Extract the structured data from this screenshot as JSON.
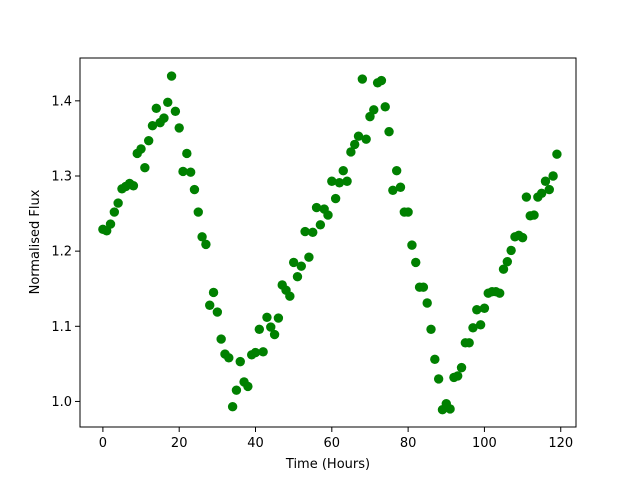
{
  "chart_data": {
    "type": "scatter",
    "title": "",
    "xlabel": "Time (Hours)",
    "ylabel": "Normalised Flux",
    "xlim": [
      -6,
      124
    ],
    "ylim": [
      0.966,
      1.457
    ],
    "xticks": [
      0,
      20,
      40,
      60,
      80,
      100,
      120
    ],
    "yticks": [
      1.0,
      1.1,
      1.2,
      1.3,
      1.4
    ],
    "grid": false,
    "legend": "none",
    "marker_color": "#008000",
    "series": [
      {
        "x": [
          0,
          1,
          2,
          3,
          4,
          5,
          6,
          7,
          8,
          9,
          10,
          11,
          12,
          13,
          14,
          15,
          16,
          17,
          18,
          19,
          20,
          21,
          22,
          23,
          24,
          25,
          26,
          27,
          28,
          29,
          30,
          31,
          32,
          33,
          34,
          35,
          36,
          37,
          38,
          39,
          40,
          41,
          42,
          43,
          44,
          45,
          46,
          47,
          48,
          49,
          50,
          51,
          52,
          53,
          54,
          55,
          56,
          57,
          58,
          59,
          60,
          61,
          62,
          63,
          64,
          65,
          66,
          67,
          68,
          69,
          70,
          71,
          72,
          73,
          74,
          75,
          76,
          77,
          78,
          79,
          80,
          81,
          82,
          83,
          84,
          85,
          86,
          87,
          88,
          89,
          90,
          91,
          92,
          93,
          94,
          95,
          96,
          97,
          98,
          99,
          100,
          101,
          102,
          103,
          104,
          105,
          106,
          107,
          108,
          109,
          110,
          111,
          112,
          113,
          114,
          115,
          116,
          117,
          118,
          119
        ],
        "y": [
          1.229,
          1.227,
          1.236,
          1.252,
          1.264,
          1.283,
          1.286,
          1.29,
          1.287,
          1.33,
          1.336,
          1.311,
          1.347,
          1.367,
          1.39,
          1.371,
          1.377,
          1.398,
          1.433,
          1.386,
          1.364,
          1.306,
          1.33,
          1.305,
          1.282,
          1.252,
          1.219,
          1.209,
          1.128,
          1.145,
          1.119,
          1.083,
          1.063,
          1.058,
          0.993,
          1.015,
          1.053,
          1.026,
          1.02,
          1.062,
          1.065,
          1.096,
          1.066,
          1.112,
          1.099,
          1.089,
          1.111,
          1.155,
          1.148,
          1.14,
          1.185,
          1.166,
          1.18,
          1.226,
          1.192,
          1.225,
          1.258,
          1.235,
          1.256,
          1.248,
          1.293,
          1.27,
          1.291,
          1.307,
          1.293,
          1.332,
          1.342,
          1.353,
          1.429,
          1.349,
          1.379,
          1.388,
          1.424,
          1.427,
          1.392,
          1.359,
          1.281,
          1.307,
          1.285,
          1.252,
          1.252,
          1.208,
          1.185,
          1.152,
          1.152,
          1.131,
          1.096,
          1.056,
          1.03,
          0.989,
          0.997,
          0.99,
          1.032,
          1.034,
          1.045,
          1.078,
          1.078,
          1.098,
          1.122,
          1.102,
          1.124,
          1.144,
          1.146,
          1.146,
          1.144,
          1.176,
          1.186,
          1.201,
          1.219,
          1.221,
          1.218,
          1.272,
          1.247,
          1.248,
          1.272,
          1.277,
          1.293,
          1.282,
          1.3,
          1.329
        ]
      }
    ]
  }
}
